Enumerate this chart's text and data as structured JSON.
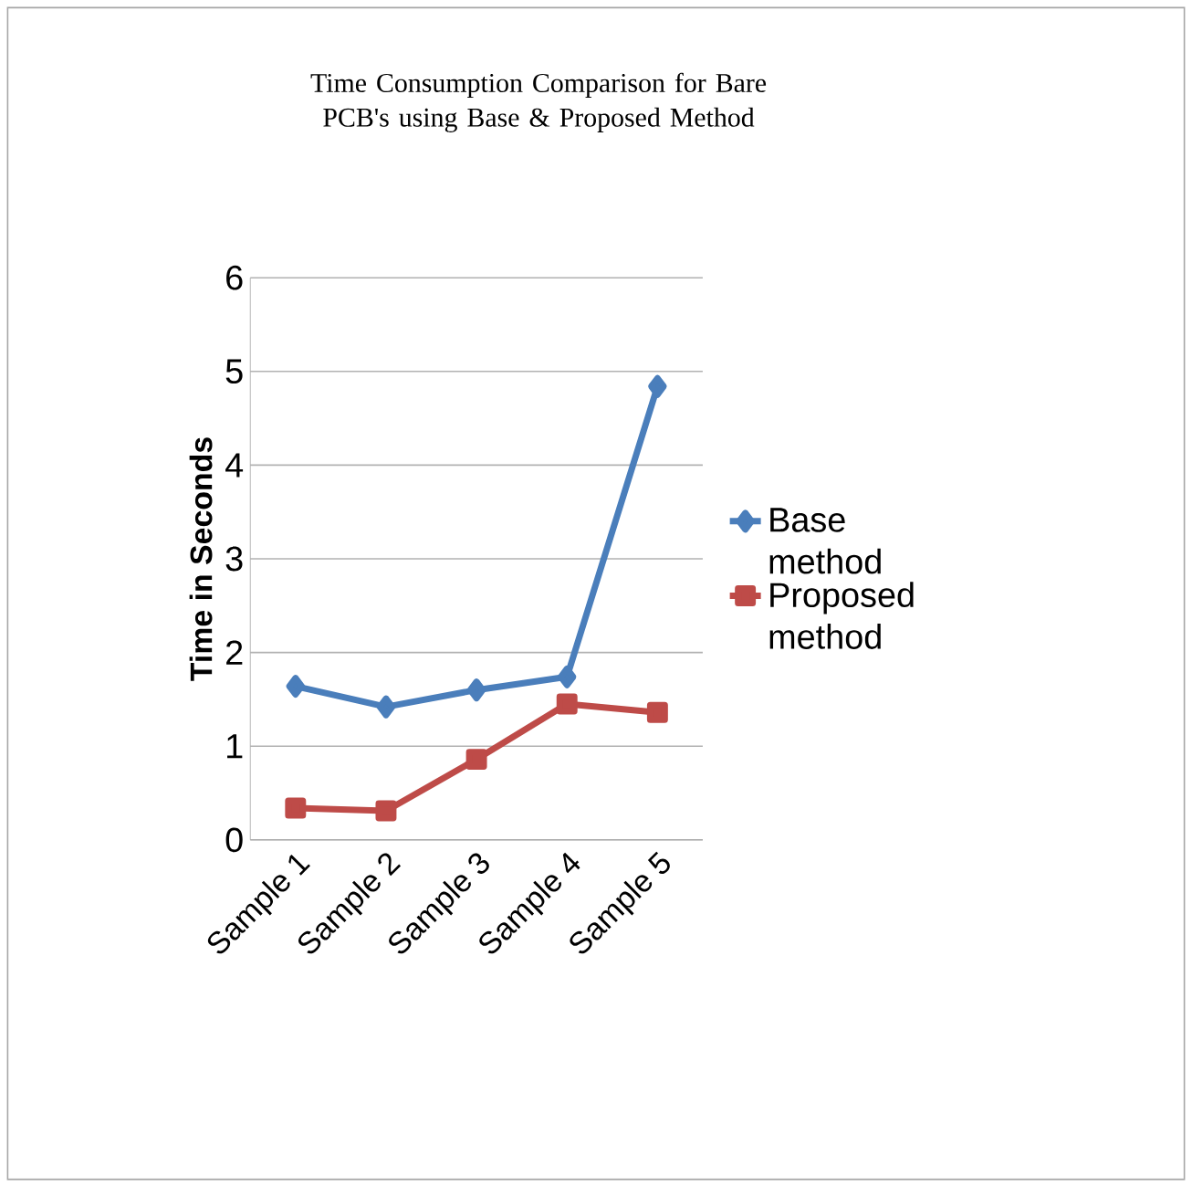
{
  "chart_data": {
    "type": "line",
    "title": "Time Consumption Comparison for Bare PCB's using Base & Proposed Method",
    "ylabel": "Time in Seconds",
    "categories": [
      "Sample 1",
      "Sample 2",
      "Sample 3",
      "Sample 4",
      "Sample 5"
    ],
    "series": [
      {
        "name": "Base method",
        "color": "#4a7ebb",
        "marker": "diamond",
        "values": [
          1.64,
          1.42,
          1.6,
          1.74,
          4.84
        ]
      },
      {
        "name": "Proposed method",
        "color": "#be4b48",
        "marker": "square",
        "values": [
          0.34,
          0.31,
          0.86,
          1.45,
          1.36
        ]
      }
    ],
    "ylim": [
      0,
      6
    ],
    "yticks": [
      0,
      1,
      2,
      3,
      4,
      5,
      6
    ],
    "grid": "y",
    "legend": "right"
  }
}
